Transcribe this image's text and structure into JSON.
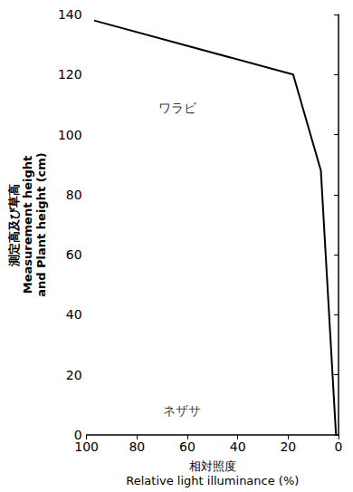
{
  "chart_data": {
    "type": "line",
    "x_label": [
      "相対照度",
      "Relative light illuminance (%)"
    ],
    "y_label": [
      "測定高及び草高",
      "Measurement height",
      "and Plant height (cm)"
    ],
    "x": [
      97,
      18,
      7,
      1
    ],
    "values": [
      138,
      120,
      88,
      0
    ],
    "color": "#000000",
    "xlim": [
      0,
      100
    ],
    "xticks": [
      0,
      20,
      40,
      60,
      80,
      100
    ],
    "ylim": [
      0,
      140
    ],
    "yticks": [
      0,
      20,
      40,
      60,
      80,
      100,
      120,
      140
    ],
    "grid": false,
    "annotations": [
      {
        "text": "ワラビ",
        "x": 64,
        "y": 109
      },
      {
        "text": "ネザサ",
        "x": 62,
        "y": 8
      }
    ]
  }
}
